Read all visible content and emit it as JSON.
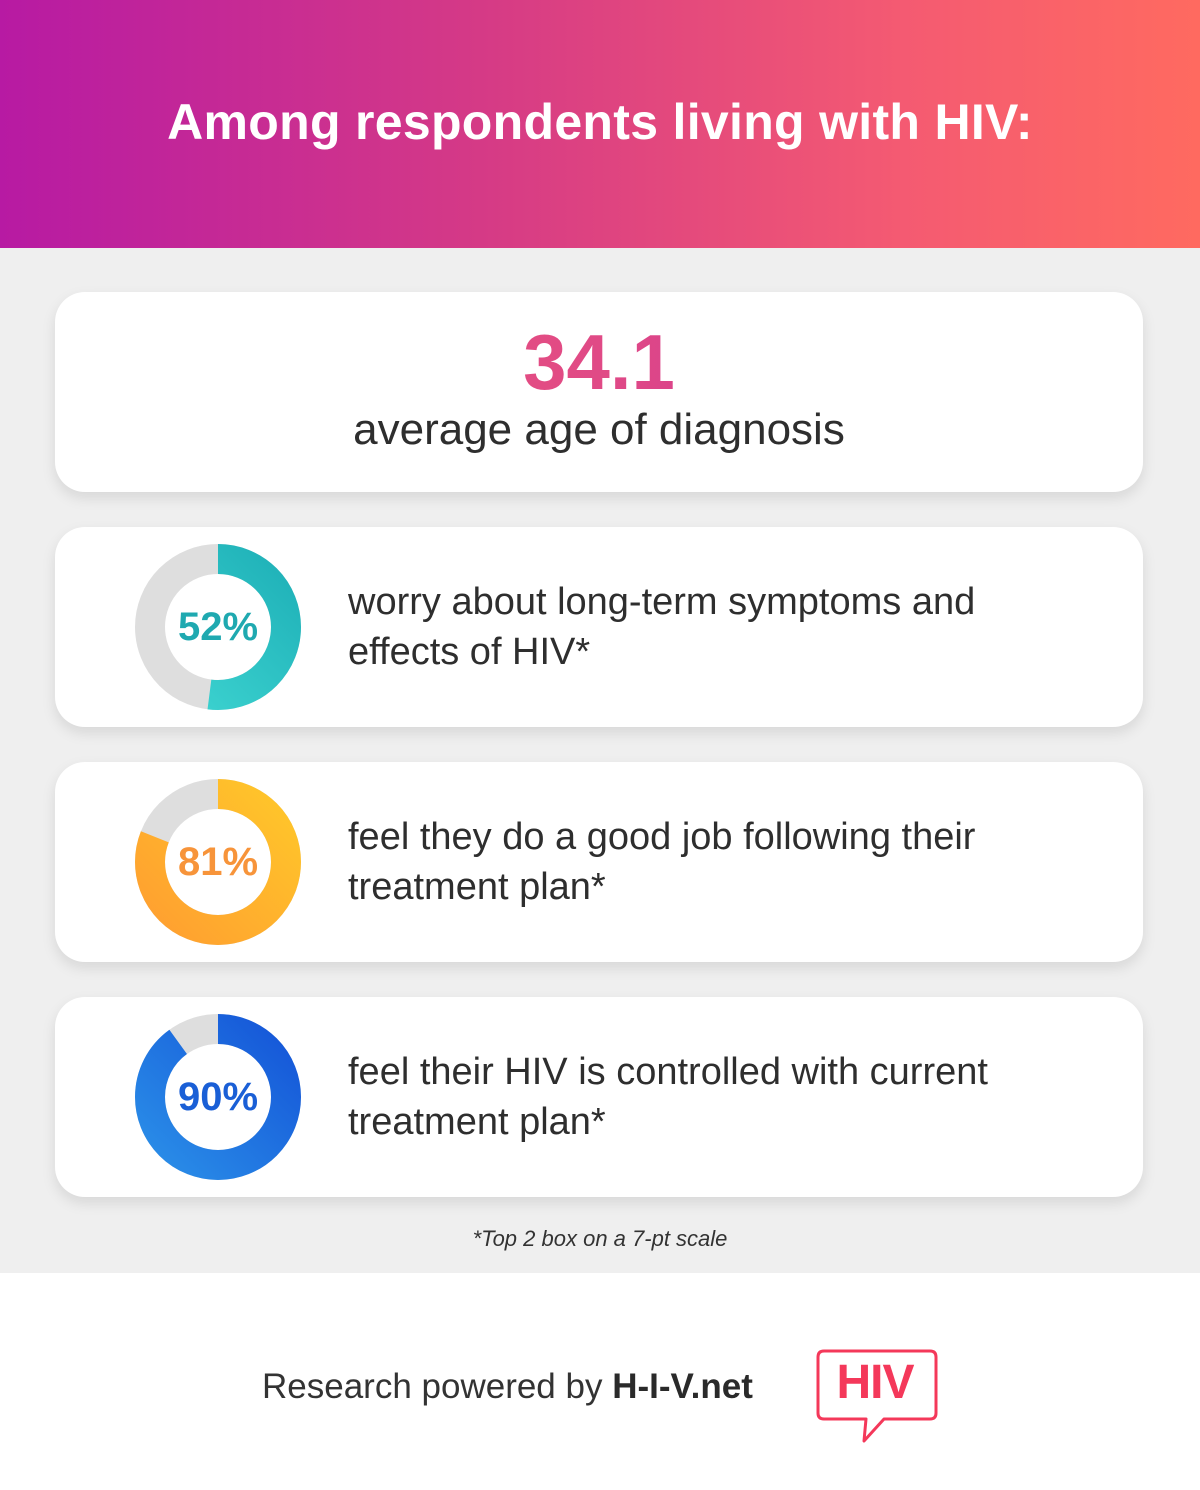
{
  "header": {
    "title": "Among respondents living with HIV:"
  },
  "hero": {
    "value": "34.1",
    "label": "average age of diagnosis"
  },
  "stats": [
    {
      "percent_label": "52%",
      "percent": 52,
      "text": "worry about long-term symptoms and effects of HIV*",
      "colors": {
        "start": "#3fd6d2",
        "end": "#1fb1b8",
        "label": "#1fa9b0"
      }
    },
    {
      "percent_label": "81%",
      "percent": 81,
      "text": "feel they do a good job following their treatment plan*",
      "colors": {
        "start": "#ffc62a",
        "end": "#ff9f30",
        "label": "#f7943a"
      }
    },
    {
      "percent_label": "90%",
      "percent": 90,
      "text": "feel their HIV is controlled with current treatment plan*",
      "colors": {
        "start": "#2a8ee8",
        "end": "#1556d8",
        "label": "#1a5fd6"
      }
    }
  ],
  "footnote": "*Top 2 box on a 7-pt scale",
  "footer": {
    "prefix": "Research powered by",
    "brand": "H-I-V.net",
    "logo_text": "HIV",
    "logo_color": "#f4385a"
  },
  "colors": {
    "header_gradient": [
      "#b71aa3",
      "#ff6a60"
    ],
    "track": "#dedede"
  }
}
